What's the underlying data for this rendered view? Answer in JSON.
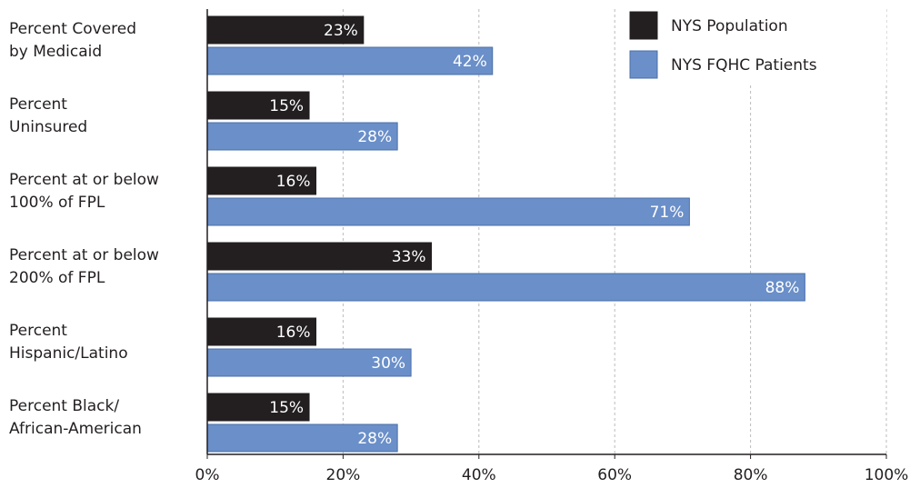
{
  "chart_data": {
    "type": "hbar",
    "categories": [
      "Percent Covered\nby Medicaid",
      "Percent\nUninsured",
      "Percent at or below\n100% of FPL",
      "Percent at or below\n200% of FPL",
      "Percent\nHispanic/Latino",
      "Percent Black/\nAfrican-American"
    ],
    "series": [
      {
        "name": "NYS Population",
        "color": "#231f20",
        "values": [
          23,
          15,
          16,
          33,
          16,
          15
        ],
        "value_labels": [
          "23%",
          "15%",
          "16%",
          "33%",
          "16%",
          "15%"
        ]
      },
      {
        "name": "NYS FQHC Patients",
        "color": "#6a8fc9",
        "values": [
          42,
          28,
          71,
          88,
          30,
          28
        ],
        "value_labels": [
          "42%",
          "28%",
          "71%",
          "88%",
          "30%",
          "28%"
        ]
      }
    ],
    "xlim": [
      0,
      100
    ],
    "xticks": [
      {
        "value": 0,
        "label": "0%"
      },
      {
        "value": 20,
        "label": "20%"
      },
      {
        "value": 40,
        "label": "40%"
      },
      {
        "value": 60,
        "label": "60%"
      },
      {
        "value": 80,
        "label": "80%"
      },
      {
        "value": 100,
        "label": "100%"
      }
    ],
    "grid": true,
    "legend": "upper right"
  }
}
